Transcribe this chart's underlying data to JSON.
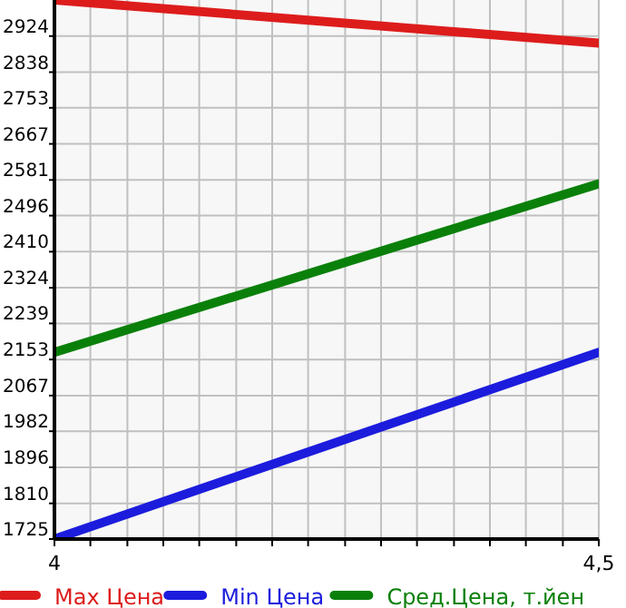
{
  "chart_data": {
    "type": "line",
    "x": [
      4,
      4.5
    ],
    "series": [
      {
        "name": "Max Цена",
        "color": "#dd1c1c",
        "values": [
          3010,
          2907
        ]
      },
      {
        "name": "Min Цена",
        "color": "#1c1cdd",
        "values": [
          1725,
          2170
        ]
      },
      {
        "name": "Сред.Цена, т.йен",
        "color": "#0a800a",
        "values": [
          2170,
          2572
        ]
      }
    ],
    "xlim": [
      4,
      4.5
    ],
    "xticks": [
      4,
      {
        "value": 4.033,
        "label": null
      },
      {
        "value": 4.067,
        "label": null
      },
      {
        "value": 4.1,
        "label": null
      },
      {
        "value": 4.133,
        "label": null
      },
      {
        "value": 4.167,
        "label": null
      },
      {
        "value": 4.2,
        "label": null
      },
      {
        "value": 4.233,
        "label": null
      },
      {
        "value": 4.267,
        "label": null
      },
      {
        "value": 4.3,
        "label": null
      },
      {
        "value": 4.333,
        "label": null
      },
      {
        "value": 4.367,
        "label": null
      },
      {
        "value": 4.4,
        "label": null
      },
      {
        "value": 4.433,
        "label": null
      },
      {
        "value": 4.467,
        "label": null
      },
      {
        "value": 4.5,
        "label": "4,5"
      }
    ],
    "ylim": [
      1725,
      3010
    ],
    "yticks": [
      1725,
      1810,
      1896,
      1982,
      2067,
      2153,
      2239,
      2324,
      2410,
      2496,
      2581,
      2667,
      2753,
      2838,
      2924
    ],
    "grid": true,
    "legend": "bottom",
    "marker": "none",
    "line_style": "solid"
  }
}
